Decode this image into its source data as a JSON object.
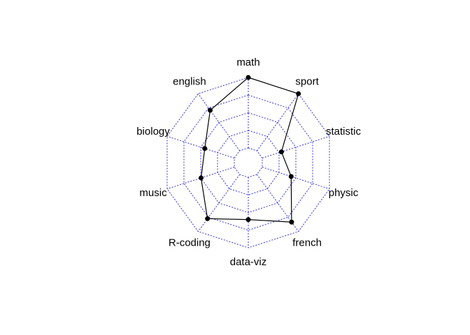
{
  "chart_data": {
    "type": "radar",
    "axes": [
      "math",
      "sport",
      "statistic",
      "physic",
      "french",
      "data-viz",
      "R-coding",
      "music",
      "biology",
      "english"
    ],
    "series": [
      {
        "values": [
          20,
          20,
          5.7,
          8.6,
          16.7,
          12,
          15.5,
          9.9,
          8.8,
          14.2
        ]
      }
    ],
    "rlim": [
      0,
      20
    ],
    "grid_levels": [
      0,
      5,
      10,
      15,
      20
    ],
    "grid_color": "#3333cc",
    "series_color": "#000000"
  }
}
